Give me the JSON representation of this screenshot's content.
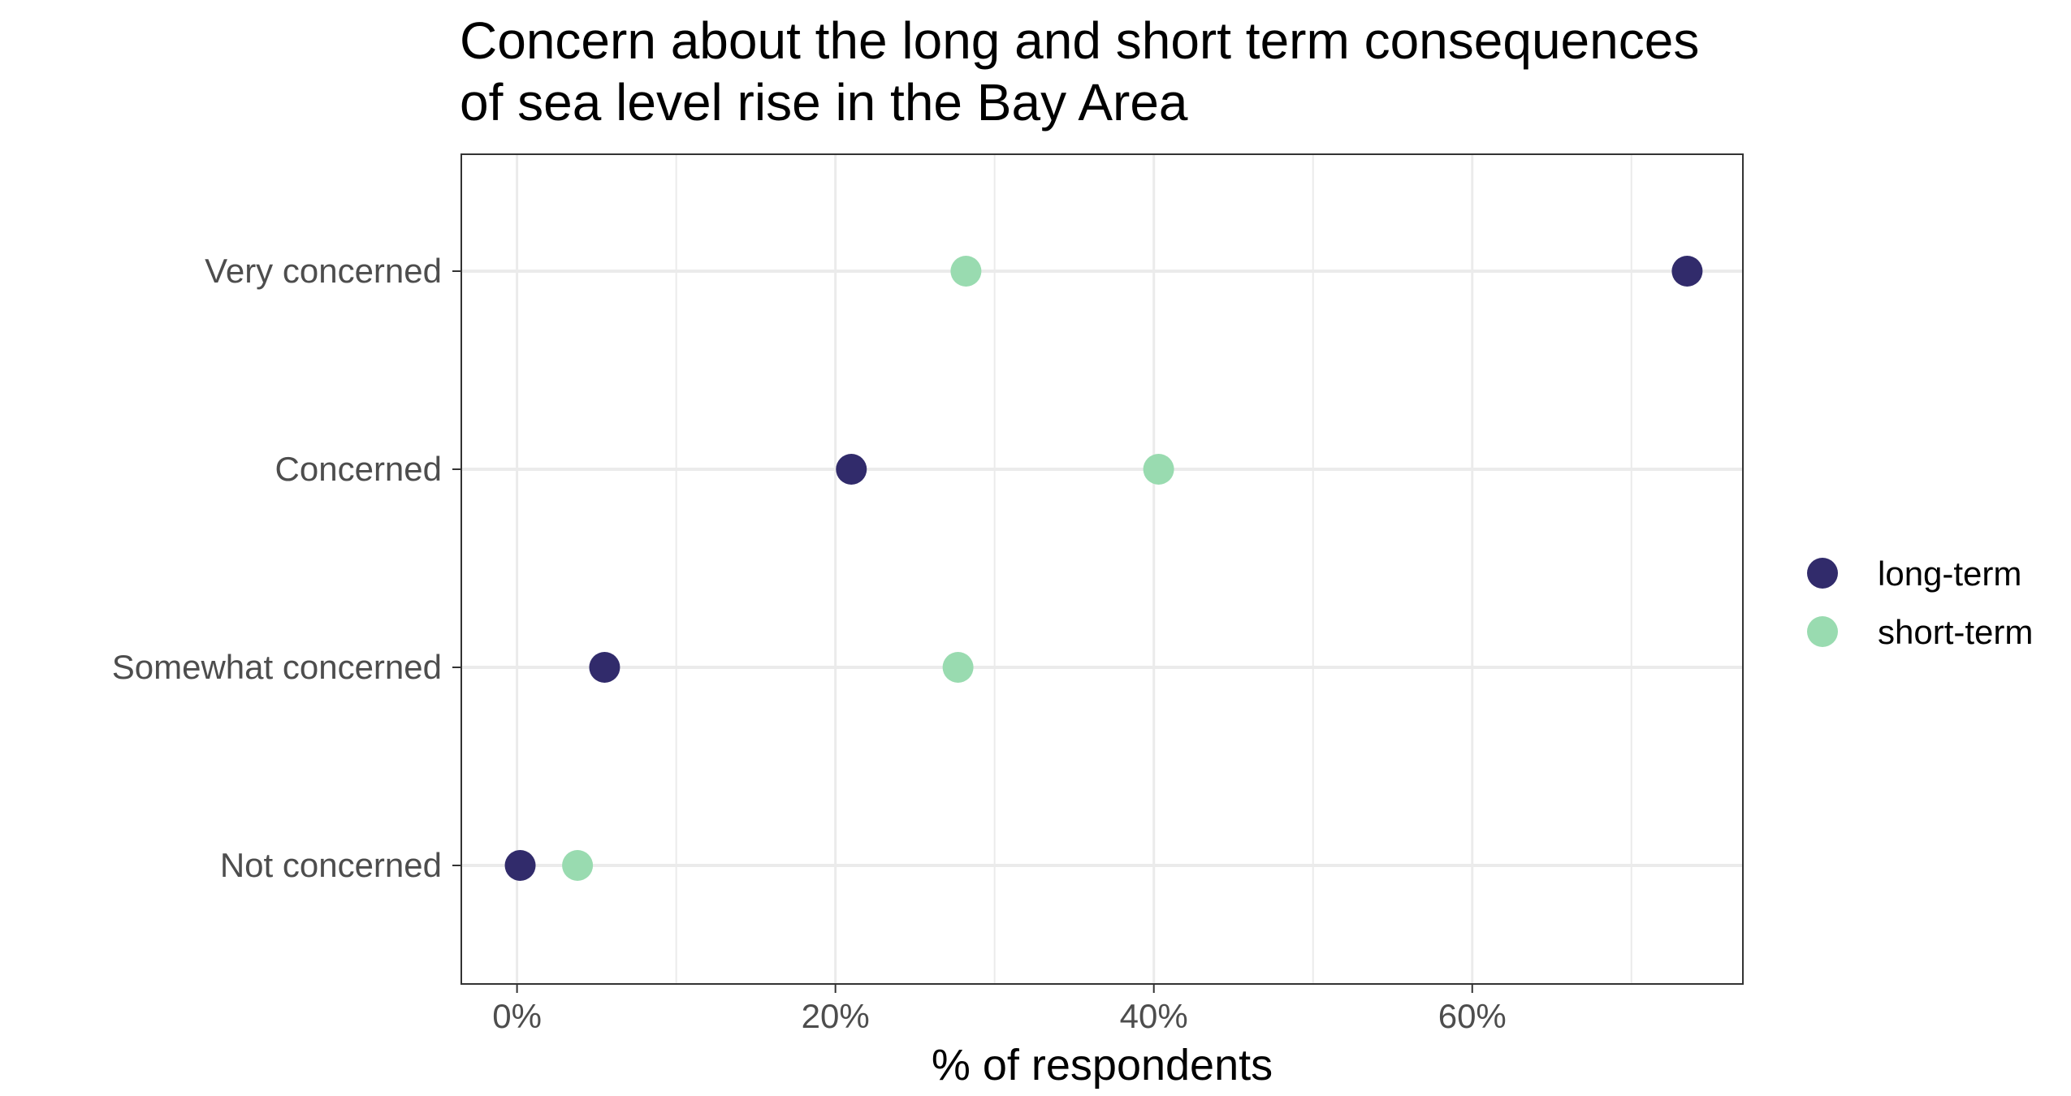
{
  "chart_data": {
    "type": "scatter",
    "title_lines": [
      "Concern about the long and short term consequences",
      "of sea level rise in the Bay Area"
    ],
    "xlabel": "% of respondents",
    "ylabel": "",
    "categories": [
      "Not concerned",
      "Somewhat concerned",
      "Concerned",
      "Very concerned"
    ],
    "x_ticks": [
      0,
      20,
      40,
      60
    ],
    "x_tick_labels": [
      "0%",
      "20%",
      "40%",
      "60%"
    ],
    "xlim": [
      -3.5,
      77
    ],
    "x_minor_grid": [
      10,
      30,
      50,
      70
    ],
    "grid": true,
    "legend_position": "right",
    "series": [
      {
        "name": "long-term",
        "color": "#312b6b",
        "values": [
          0.2,
          5.5,
          21.0,
          73.5
        ]
      },
      {
        "name": "short-term",
        "color": "#99dbb0",
        "values": [
          3.8,
          27.7,
          40.3,
          28.2
        ]
      }
    ]
  }
}
